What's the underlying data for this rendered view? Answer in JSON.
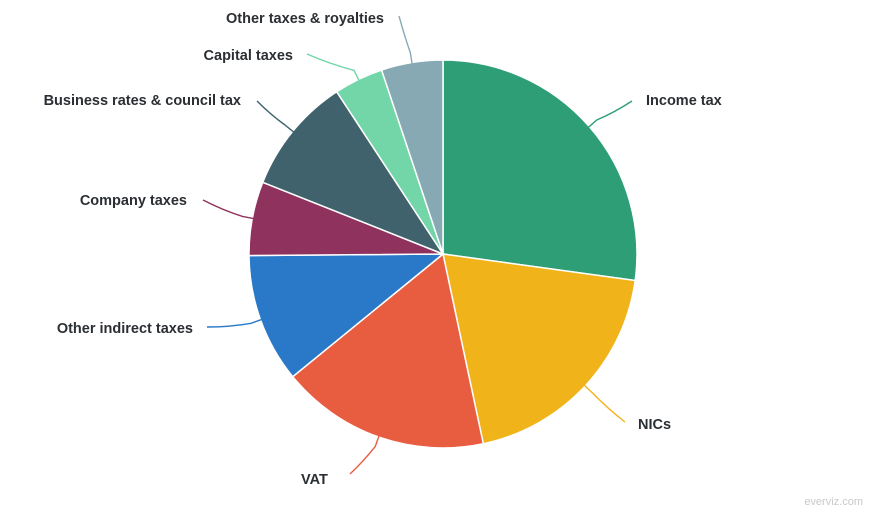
{
  "chart_data": {
    "type": "pie",
    "start_angle_deg": 0,
    "direction": "clockwise",
    "slices": [
      {
        "label": "Income tax",
        "value": 26.5,
        "color": "#2e9e76"
      },
      {
        "label": "NICs",
        "value": 19.0,
        "color": "#f0b31a"
      },
      {
        "label": "VAT",
        "value": 17.0,
        "color": "#e85c40"
      },
      {
        "label": "Other indirect taxes",
        "value": 10.5,
        "color": "#2979c8"
      },
      {
        "label": "Company taxes",
        "value": 6.0,
        "color": "#8f325e"
      },
      {
        "label": "Business rates & council tax",
        "value": 9.5,
        "color": "#3f626c"
      },
      {
        "label": "Capital taxes",
        "value": 4.0,
        "color": "#72d6a8"
      },
      {
        "label": "Other taxes & royalties",
        "value": 5.0,
        "color": "#86a9b4"
      }
    ]
  },
  "credit": "everviz.com"
}
